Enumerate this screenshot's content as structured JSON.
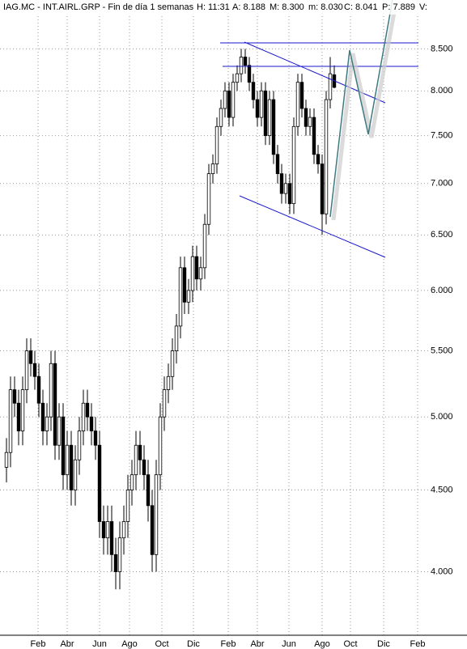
{
  "chart_data": {
    "type": "candlestick",
    "header": [
      "IAG.MC - INT.AIRL.GRP - Fin de día 1 semanas",
      "H: 11:31",
      "A: 8.188",
      "M: 8.300",
      "m: 8.030",
      "C: 8.041",
      "P: 7.889",
      "V:"
    ],
    "log_scale": true,
    "grid": true,
    "x": [
      0,
      1,
      2,
      3,
      4,
      5,
      6,
      7,
      8,
      9,
      10,
      11,
      12,
      13,
      14,
      15,
      16,
      17,
      18,
      19,
      20,
      21,
      22,
      23,
      24,
      25,
      26,
      27,
      28,
      29,
      30,
      31,
      32,
      33,
      34,
      35,
      36,
      37,
      38,
      39,
      40,
      41,
      42,
      43,
      44,
      45,
      46,
      47,
      48,
      49,
      50,
      51,
      52,
      53,
      54,
      55,
      56,
      57,
      58,
      59,
      60,
      61,
      62,
      63,
      64,
      65,
      66,
      67,
      68,
      69,
      70,
      71,
      72,
      73,
      74,
      75,
      76,
      77,
      78,
      79,
      80,
      81
    ],
    "open": [
      4.65,
      4.75,
      5.2,
      5.1,
      4.9,
      5.2,
      5.5,
      5.4,
      5.3,
      5.1,
      4.9,
      5.0,
      5.4,
      4.8,
      5.0,
      4.6,
      4.8,
      4.5,
      4.7,
      4.9,
      5.1,
      5.0,
      4.9,
      4.8,
      4.3,
      4.2,
      4.3,
      4.1,
      4.0,
      4.2,
      4.3,
      4.5,
      4.6,
      4.8,
      4.7,
      4.6,
      4.4,
      4.1,
      4.6,
      5.0,
      5.2,
      5.3,
      5.5,
      5.7,
      6.2,
      5.9,
      6.0,
      6.3,
      6.1,
      6.2,
      6.6,
      7.1,
      7.2,
      7.6,
      7.8,
      8.0,
      7.7,
      8.1,
      8.2,
      8.4,
      8.3,
      8.1,
      7.9,
      7.7,
      8.0,
      7.5,
      7.9,
      7.3,
      7.1,
      6.9,
      7.0,
      6.8,
      7.6,
      8.1,
      7.8,
      7.6,
      7.7,
      7.3,
      7.2,
      6.7,
      7.9,
      8.188
    ],
    "high": [
      4.85,
      5.3,
      5.3,
      5.2,
      5.3,
      5.6,
      5.6,
      5.5,
      5.4,
      5.2,
      5.1,
      5.5,
      5.5,
      5.1,
      5.1,
      4.9,
      4.9,
      4.8,
      5.0,
      5.2,
      5.2,
      5.1,
      5.0,
      4.9,
      4.4,
      4.4,
      4.4,
      4.2,
      4.3,
      4.4,
      4.6,
      4.7,
      4.9,
      4.9,
      4.8,
      4.7,
      4.5,
      4.7,
      5.1,
      5.3,
      5.4,
      5.6,
      5.8,
      6.3,
      6.3,
      6.1,
      6.4,
      6.4,
      6.3,
      6.7,
      7.2,
      7.3,
      7.7,
      7.9,
      8.1,
      8.1,
      8.2,
      8.3,
      8.5,
      8.5,
      8.4,
      8.2,
      8.0,
      8.1,
      8.1,
      8.0,
      8.0,
      7.4,
      7.2,
      7.1,
      7.1,
      7.7,
      8.2,
      8.2,
      7.9,
      7.8,
      7.8,
      7.4,
      7.3,
      8.0,
      8.4,
      8.3
    ],
    "low": [
      4.55,
      4.65,
      5.0,
      4.8,
      4.8,
      5.1,
      5.3,
      5.2,
      5.0,
      4.8,
      4.8,
      4.9,
      4.7,
      4.7,
      4.5,
      4.5,
      4.4,
      4.4,
      4.6,
      4.8,
      4.9,
      4.8,
      4.7,
      4.2,
      4.1,
      4.1,
      4.0,
      3.9,
      3.9,
      4.1,
      4.2,
      4.4,
      4.5,
      4.6,
      4.5,
      4.3,
      4.0,
      4.0,
      4.5,
      4.9,
      5.1,
      5.2,
      5.4,
      5.6,
      5.8,
      5.8,
      5.9,
      6.0,
      6.0,
      6.1,
      6.5,
      7.0,
      7.1,
      7.5,
      7.7,
      7.6,
      7.6,
      8.0,
      8.1,
      8.2,
      8.0,
      7.8,
      7.6,
      7.6,
      7.4,
      7.4,
      7.2,
      7.0,
      6.8,
      6.8,
      6.7,
      6.7,
      7.5,
      7.7,
      7.5,
      7.5,
      7.2,
      7.1,
      6.5,
      6.6,
      7.8,
      8.03
    ],
    "close": [
      4.75,
      5.2,
      5.1,
      4.9,
      5.2,
      5.5,
      5.4,
      5.3,
      5.1,
      4.9,
      5.0,
      5.4,
      4.8,
      5.0,
      4.6,
      4.8,
      4.5,
      4.7,
      4.9,
      5.1,
      5.0,
      4.9,
      4.8,
      4.3,
      4.2,
      4.3,
      4.1,
      4.0,
      4.2,
      4.3,
      4.5,
      4.6,
      4.8,
      4.7,
      4.6,
      4.4,
      4.1,
      4.6,
      5.0,
      5.2,
      5.3,
      5.5,
      5.7,
      6.2,
      5.9,
      6.0,
      6.3,
      6.1,
      6.2,
      6.6,
      7.1,
      7.2,
      7.6,
      7.8,
      8.0,
      7.7,
      8.1,
      8.2,
      8.4,
      8.3,
      8.1,
      7.9,
      7.7,
      8.0,
      7.5,
      7.9,
      7.3,
      7.1,
      6.9,
      7.0,
      6.8,
      7.6,
      8.1,
      7.8,
      7.6,
      7.7,
      7.3,
      7.2,
      6.7,
      7.9,
      8.2,
      8.041
    ],
    "xlim": [
      -1.6,
      104.4
    ],
    "xticks": [
      {
        "value": 7.8,
        "label": "Feb"
      },
      {
        "value": 15,
        "label": "Abr"
      },
      {
        "value": 23,
        "label": "Jun"
      },
      {
        "value": 30.4,
        "label": "Ago"
      },
      {
        "value": 38.4,
        "label": "Oct"
      },
      {
        "value": 46.2,
        "label": "Dic"
      },
      {
        "value": 54.8,
        "label": "Feb"
      },
      {
        "value": 62,
        "label": "Abr"
      },
      {
        "value": 69.8,
        "label": "Jun"
      },
      {
        "value": 78,
        "label": "Ago"
      },
      {
        "value": 85,
        "label": "Oct"
      },
      {
        "value": 93.2,
        "label": "Dic"
      },
      {
        "value": 101.6,
        "label": "Feb"
      }
    ],
    "ylim": [
      3.65,
      9.12
    ],
    "yticks": [
      {
        "value": 4,
        "label": "4.000"
      },
      {
        "value": 4.5,
        "label": "4.500"
      },
      {
        "value": 5,
        "label": "5.000"
      },
      {
        "value": 5.5,
        "label": "5.500"
      },
      {
        "value": 6,
        "label": "6.000"
      },
      {
        "value": 6.5,
        "label": "6.500"
      },
      {
        "value": 7,
        "label": "7.000"
      },
      {
        "value": 7.5,
        "label": "7.500"
      },
      {
        "value": 8,
        "label": "8.000"
      },
      {
        "value": 8.5,
        "label": "8.500"
      }
    ]
  }
}
